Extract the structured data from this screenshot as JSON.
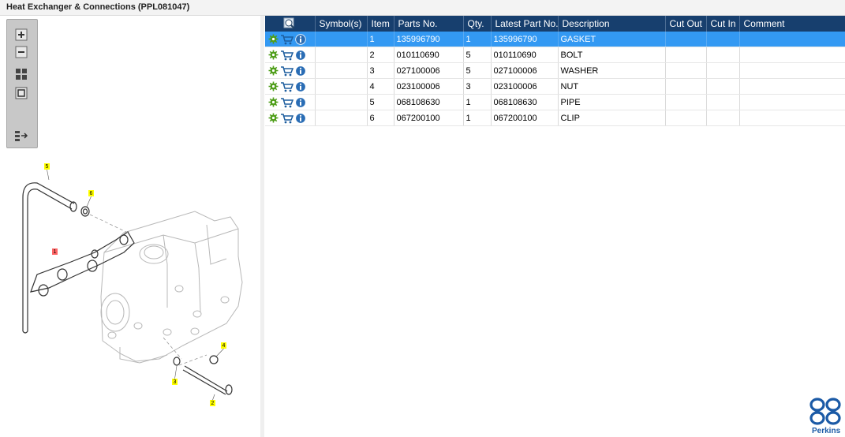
{
  "window": {
    "title": "Heat Exchanger & Connections (PPL081047)"
  },
  "toolbar": {
    "buttons": [
      {
        "name": "zoom-in",
        "icon": "plus-icon"
      },
      {
        "name": "zoom-out",
        "icon": "minus-icon"
      },
      {
        "name": "fit-grid",
        "icon": "grid-icon"
      },
      {
        "name": "actual-size",
        "icon": "square-icon"
      },
      {
        "name": "toggle-list",
        "icon": "list-arrow-icon"
      }
    ]
  },
  "diagram": {
    "callouts": [
      "5",
      "6",
      "1",
      "4",
      "3",
      "2"
    ],
    "callout_color": "#ffff00"
  },
  "grid": {
    "headers": [
      "",
      "Symbol(s)",
      "Item",
      "Parts No.",
      "Qty.",
      "Latest Part No.",
      "Description",
      "Cut Out",
      "Cut In",
      "Comment"
    ],
    "rows": [
      {
        "symbol": "",
        "item": "1",
        "part_no": "135996790",
        "qty": "1",
        "latest": "135996790",
        "desc": "GASKET",
        "cut_out": "",
        "cut_in": "",
        "comment": ""
      },
      {
        "symbol": "",
        "item": "2",
        "part_no": "010110690",
        "qty": "5",
        "latest": "010110690",
        "desc": "BOLT",
        "cut_out": "",
        "cut_in": "",
        "comment": ""
      },
      {
        "symbol": "",
        "item": "3",
        "part_no": "027100006",
        "qty": "5",
        "latest": "027100006",
        "desc": "WASHER",
        "cut_out": "",
        "cut_in": "",
        "comment": ""
      },
      {
        "symbol": "",
        "item": "4",
        "part_no": "023100006",
        "qty": "3",
        "latest": "023100006",
        "desc": "NUT",
        "cut_out": "",
        "cut_in": "",
        "comment": ""
      },
      {
        "symbol": "",
        "item": "5",
        "part_no": "068108630",
        "qty": "1",
        "latest": "068108630",
        "desc": "PIPE",
        "cut_out": "",
        "cut_in": "",
        "comment": ""
      },
      {
        "symbol": "",
        "item": "6",
        "part_no": "067200100",
        "qty": "1",
        "latest": "067200100",
        "desc": "CLIP",
        "cut_out": "",
        "cut_in": "",
        "comment": ""
      }
    ],
    "selected_row": 0
  },
  "brand": {
    "name": "Perkins",
    "color": "#1b5aa6"
  },
  "colors": {
    "header": "#173f6e",
    "selection": "#3399f3",
    "gear": "#4f9e1a"
  }
}
